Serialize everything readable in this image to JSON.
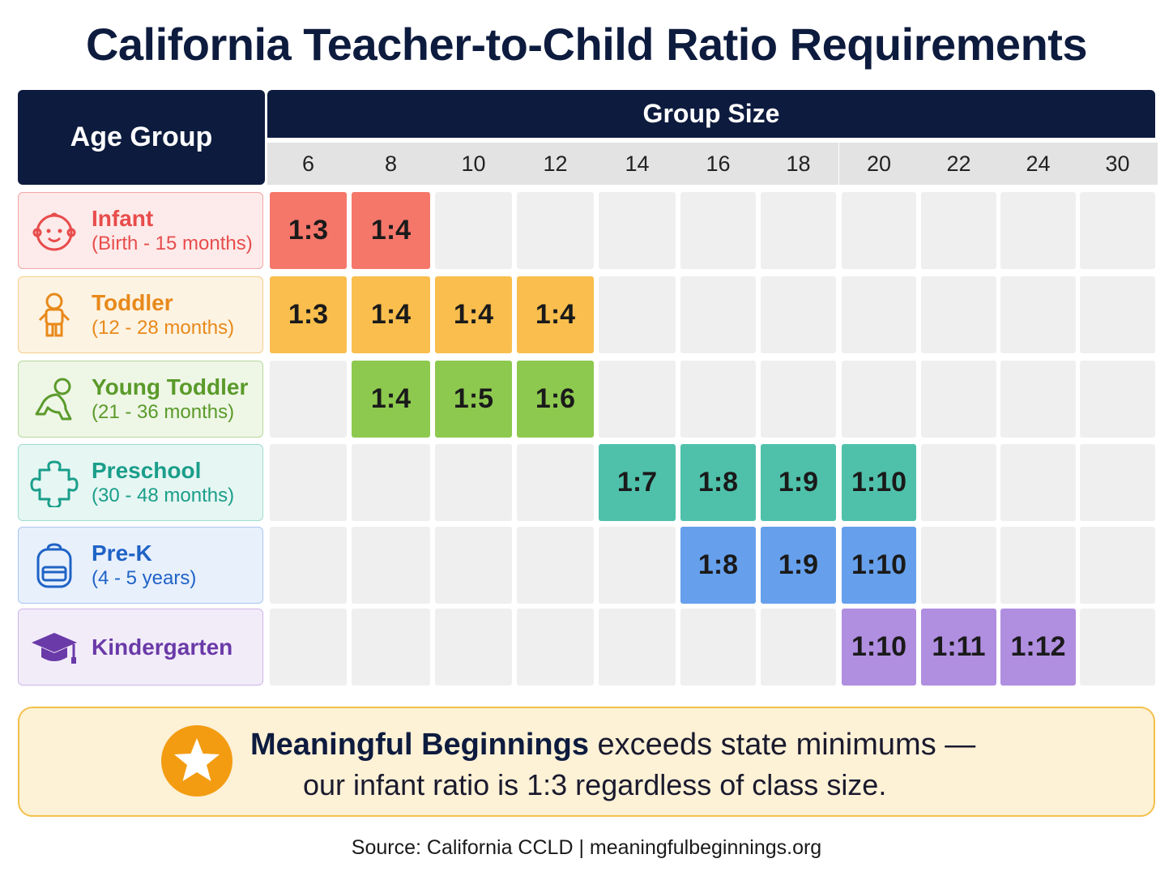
{
  "title": "California Teacher-to-Child Ratio Requirements",
  "header": {
    "age_group": "Age Group",
    "group_size": "Group Size",
    "sizes": [
      "6",
      "8",
      "10",
      "12",
      "14",
      "16",
      "18",
      "20",
      "22",
      "24",
      "30"
    ]
  },
  "rows": [
    {
      "name": "Infant",
      "range": "(Birth - 15 months)",
      "icon": "baby-face-icon",
      "color": "#e84c4c",
      "bg": "#fdeaea",
      "border": "#f3a6a6",
      "cell_color": "#f5776a",
      "ratios": [
        "1:3",
        "1:4",
        "",
        "",
        "",
        "",
        "",
        "",
        "",
        "",
        ""
      ]
    },
    {
      "name": "Toddler",
      "range": "(12 - 28 months)",
      "icon": "toddler-icon",
      "color": "#e8891a",
      "bg": "#fdf3e2",
      "border": "#f4cf8c",
      "cell_color": "#f9be4d",
      "ratios": [
        "1:3",
        "1:4",
        "1:4",
        "1:4",
        "",
        "",
        "",
        "",
        "",
        "",
        ""
      ]
    },
    {
      "name": "Young Toddler",
      "range": "(21 - 36 months)",
      "icon": "crawling-baby-icon",
      "color": "#5a9a2a",
      "bg": "#eef6e6",
      "border": "#b7d99a",
      "cell_color": "#8dc94f",
      "ratios": [
        "",
        "1:4",
        "1:5",
        "1:6",
        "",
        "",
        "",
        "",
        "",
        "",
        ""
      ]
    },
    {
      "name": "Preschool",
      "range": "(30 - 48 months)",
      "icon": "puzzle-piece-icon",
      "color": "#1a9e8a",
      "bg": "#e6f6f3",
      "border": "#9fdccf",
      "cell_color": "#4fc1ab",
      "ratios": [
        "",
        "",
        "",
        "",
        "1:7",
        "1:8",
        "1:9",
        "1:10",
        "",
        "",
        ""
      ]
    },
    {
      "name": "Pre-K",
      "range": "(4 - 5 years)",
      "icon": "backpack-icon",
      "color": "#1f63c6",
      "bg": "#e8f0fc",
      "border": "#a9c6f0",
      "cell_color": "#66a0ec",
      "ratios": [
        "",
        "",
        "",
        "",
        "",
        "1:8",
        "1:9",
        "1:10",
        "",
        "",
        ""
      ]
    },
    {
      "name": "Kindergarten",
      "range": "",
      "icon": "graduation-cap-icon",
      "color": "#6a3aa8",
      "bg": "#f2ecf9",
      "border": "#cdb6e8",
      "cell_color": "#b08ee0",
      "ratios": [
        "",
        "",
        "",
        "",
        "",
        "",
        "",
        "1:10",
        "1:11",
        "1:12",
        ""
      ]
    }
  ],
  "callout": {
    "bold": "Meaningful Beginnings",
    "line1_rest": " exceeds state minimums —",
    "line2": "our infant ratio is 1:3 regardless of class size.",
    "icon": "star-icon"
  },
  "source": "Source: California CCLD  |  meaningfulbeginnings.org"
}
